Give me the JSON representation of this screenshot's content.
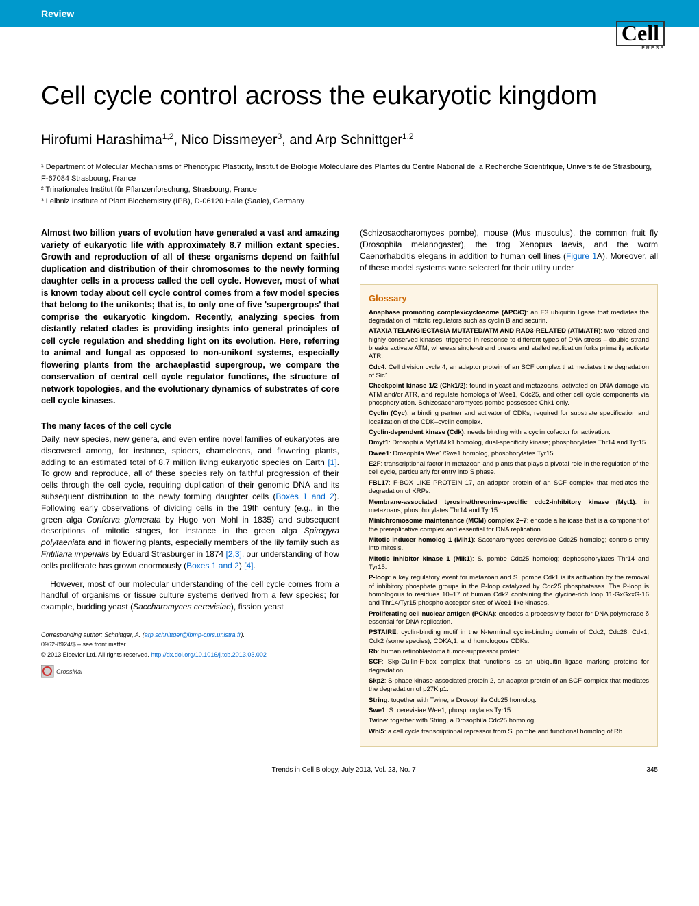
{
  "header": {
    "review_label": "Review",
    "logo_text": "Cell",
    "logo_sub": "PRESS"
  },
  "title": "Cell cycle control across the eukaryotic kingdom",
  "authors_html": "Hirofumi Harashima<sup>1,2</sup>, Nico Dissmeyer<sup>3</sup>, and Arp Schnittger<sup>1,2</sup>",
  "affiliations": [
    "¹ Department of Molecular Mechanisms of Phenotypic Plasticity, Institut de Biologie Moléculaire des Plantes du Centre National de la Recherche Scientifique, Université de Strasbourg, F-67084 Strasbourg, France",
    "² Trinationales Institut für Pflanzenforschung, Strasbourg, France",
    "³ Leibniz Institute of Plant Biochemistry (IPB), D-06120 Halle (Saale), Germany"
  ],
  "abstract": "Almost two billion years of evolution have generated a vast and amazing variety of eukaryotic life with approximately 8.7 million extant species. Growth and reproduction of all of these organisms depend on faithful duplication and distribution of their chromosomes to the newly forming daughter cells in a process called the cell cycle. However, most of what is known today about cell cycle control comes from a few model species that belong to the unikonts; that is, to only one of five 'supergroups' that comprise the eukaryotic kingdom. Recently, analyzing species from distantly related clades is providing insights into general principles of cell cycle regulation and shedding light on its evolution. Here, referring to animal and fungal as opposed to non-unikont systems, especially flowering plants from the archaeplastid supergroup, we compare the conservation of central cell cycle regulator functions, the structure of network topologies, and the evolutionary dynamics of substrates of core cell cycle kinases.",
  "section1_heading": "The many faces of the cell cycle",
  "body_p1": "Daily, new species, new genera, and even entire novel families of eukaryotes are discovered among, for instance, spiders, chameleons, and flowering plants, adding to an estimated total of 8.7 million living eukaryotic species on Earth [1]. To grow and reproduce, all of these species rely on faithful progression of their cells through the cell cycle, requiring duplication of their genomic DNA and its subsequent distribution to the newly forming daughter cells (Boxes 1 and 2). Following early observations of dividing cells in the 19th century (e.g., in the green alga Conferva glomerata by Hugo von Mohl in 1835) and subsequent descriptions of mitotic stages, for instance in the green alga Spirogyra polytaeniata and in flowering plants, especially members of the lily family such as Fritillaria imperialis by Eduard Strasburger in 1874 [2,3], our understanding of how cells proliferate has grown enormously (Boxes 1 and 2) [4].",
  "body_p2": "However, most of our molecular understanding of the cell cycle comes from a handful of organisms or tissue culture systems derived from a few species; for example, budding yeast (Saccharomyces cerevisiae), fission yeast",
  "right_intro": "(Schizosaccharomyces pombe), mouse (Mus musculus), the common fruit fly (Drosophila melanogaster), the frog Xenopus laevis, and the worm Caenorhabditis elegans in addition to human cell lines (Figure 1A). Moreover, all of these model systems were selected for their utility under",
  "glossary": {
    "title": "Glossary",
    "items": [
      {
        "term": "Anaphase promoting complex/cyclosome (APC/C)",
        "def": ": an E3 ubiquitin ligase that mediates the degradation of mitotic regulators such as cyclin B and securin."
      },
      {
        "term": "ATAXIA TELANGIECTASIA MUTATED/ATM AND RAD3-RELATED (ATM/ATR)",
        "def": ": two related and highly conserved kinases, triggered in response to different types of DNA stress – double-strand breaks activate ATM, whereas single-strand breaks and stalled replication forks primarily activate ATR."
      },
      {
        "term": "Cdc4",
        "def": ": Cell division cycle 4, an adaptor protein of an SCF complex that mediates the degradation of Sic1."
      },
      {
        "term": "Checkpoint kinase 1/2 (Chk1/2)",
        "def": ": found in yeast and metazoans, activated on DNA damage via ATM and/or ATR, and regulate homologs of Wee1, Cdc25, and other cell cycle components via phosphorylation. Schizosaccharomyces pombe possesses Chk1 only."
      },
      {
        "term": "Cyclin (Cyc)",
        "def": ": a binding partner and activator of CDKs, required for substrate specification and localization of the CDK–cyclin complex."
      },
      {
        "term": "Cyclin-dependent kinase (Cdk)",
        "def": ": needs binding with a cyclin cofactor for activation."
      },
      {
        "term": "Dmyt1",
        "def": ": Drosophila Myt1/Mik1 homolog, dual-specificity kinase; phosphorylates Thr14 and Tyr15."
      },
      {
        "term": "Dwee1",
        "def": ": Drosophila Wee1/Swe1 homolog, phosphorylates Tyr15."
      },
      {
        "term": "E2F",
        "def": ": transcriptional factor in metazoan and plants that plays a pivotal role in the regulation of the cell cycle, particularly for entry into S phase."
      },
      {
        "term": "FBL17",
        "def": ": F-BOX LIKE PROTEIN 17, an adaptor protein of an SCF complex that mediates the degradation of KRPs."
      },
      {
        "term": "Membrane-associated tyrosine/threonine-specific cdc2-inhibitory kinase (Myt1)",
        "def": ": in metazoans, phosphorylates Thr14 and Tyr15."
      },
      {
        "term": "Minichromosome maintenance (MCM) complex 2–7",
        "def": ": encode a helicase that is a component of the prereplicative complex and essential for DNA replication."
      },
      {
        "term": "Mitotic inducer homolog 1 (Mih1)",
        "def": ": Saccharomyces cerevisiae Cdc25 homolog; controls entry into mitosis."
      },
      {
        "term": "Mitotic inhibitor kinase 1 (Mik1)",
        "def": ": S. pombe Cdc25 homolog; dephosphorylates Thr14 and Tyr15."
      },
      {
        "term": "P-loop",
        "def": ": a key regulatory event for metazoan and S. pombe Cdk1 is its activation by the removal of inhibitory phosphate groups in the P-loop catalyzed by Cdc25 phosphatases. The P-loop is homologous to residues 10–17 of human Cdk2 containing the glycine-rich loop 11-GxGxxG-16 and Thr14/Tyr15 phospho-acceptor sites of Wee1-like kinases."
      },
      {
        "term": "Proliferating cell nuclear antigen (PCNA)",
        "def": ": encodes a processivity factor for DNA polymerase δ essential for DNA replication."
      },
      {
        "term": "PSTAIRE",
        "def": ": cyclin-binding motif in the N-terminal cyclin-binding domain of Cdc2, Cdc28, Cdk1, Cdk2 (some species), CDKA;1, and homologous CDKs."
      },
      {
        "term": "Rb",
        "def": ": human retinoblastoma tumor-suppressor protein."
      },
      {
        "term": "SCF",
        "def": ": Skp-Cullin-F-box complex that functions as an ubiquitin ligase marking proteins for degradation."
      },
      {
        "term": "Skp2",
        "def": ": S-phase kinase-associated protein 2, an adaptor protein of an SCF complex that mediates the degradation of p27Kip1."
      },
      {
        "term": "String",
        "def": ": together with Twine, a Drosophila Cdc25 homolog."
      },
      {
        "term": "Swe1",
        "def": ": S. cerevisiae Wee1, phosphorylates Tyr15."
      },
      {
        "term": "Twine",
        "def": ": together with String, a Drosophila Cdc25 homolog."
      },
      {
        "term": "Whi5",
        "def": ": a cell cycle transcriptional repressor from S. pombe and functional homolog of Rb."
      }
    ]
  },
  "footer": {
    "corresponding": "Corresponding author: Schnittger, A. (arp.schnittger@ibmp-cnrs.unistra.fr).",
    "issn": "0962-8924/$ – see front matter",
    "copyright": "© 2013 Elsevier Ltd. All rights reserved. http://dx.doi.org/10.1016/j.tcb.2013.03.002",
    "crossmark": "CrossMark",
    "journal_info": "Trends in Cell Biology, July 2013, Vol. 23, No. 7",
    "page_num": "345"
  },
  "colors": {
    "header_bg": "#0099cc",
    "glossary_bg": "#fdf5e6",
    "glossary_border": "#e0d0a0",
    "glossary_title": "#cc6600",
    "link_color": "#0066cc"
  }
}
